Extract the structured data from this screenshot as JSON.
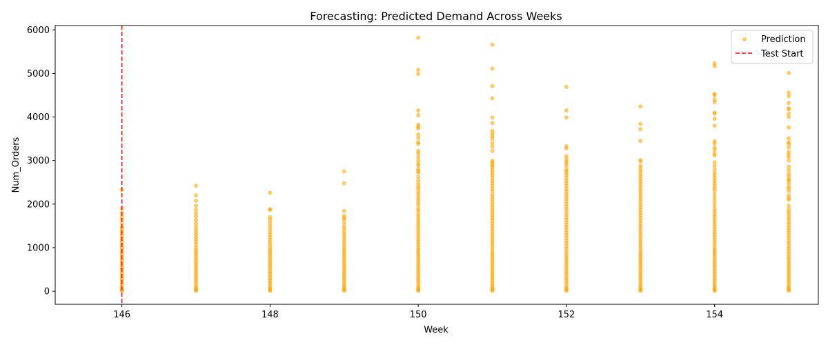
{
  "colors": {
    "prediction": "#ffa500",
    "test_start": "#ff0000",
    "axis": "#000000",
    "legend_border": "#cccccc"
  },
  "chart_data": {
    "type": "scatter",
    "title": "Forecasting: Predicted Demand Across Weeks",
    "xlabel": "Week",
    "ylabel": "Num_Orders",
    "xlim": [
      145.1,
      155.4
    ],
    "ylim": [
      -300,
      6100
    ],
    "xticks": [
      146,
      148,
      150,
      152,
      154
    ],
    "yticks": [
      0,
      1000,
      2000,
      3000,
      4000,
      5000,
      6000
    ],
    "grid": false,
    "legend_position": "top-right",
    "series": [
      {
        "name": "Prediction",
        "kind": "scatter",
        "points_by_week": [
          {
            "week": 146,
            "y": [
              2330,
              1900,
              1800,
              1720,
              1650,
              1560,
              1480,
              1440,
              1380,
              1330,
              1280,
              1220,
              1160,
              1100,
              1050,
              1000,
              950,
              900,
              850,
              800,
              750,
              700,
              650,
              600,
              550,
              500,
              450,
              400,
              350,
              300,
              250,
              200,
              150,
              100,
              60,
              30,
              10
            ]
          },
          {
            "week": 147,
            "y": [
              2420,
              2200,
              2080,
              1960,
              1870,
              1790,
              1710,
              1630,
              1560,
              1490,
              1420,
              1360,
              1300,
              1240,
              1180,
              1120,
              1060,
              1000,
              950,
              900,
              850,
              800,
              750,
              700,
              650,
              600,
              550,
              500,
              450,
              400,
              350,
              300,
              250,
              200,
              150,
              100,
              60,
              30,
              10
            ]
          },
          {
            "week": 148,
            "y": [
              2260,
              1880,
              1870,
              1700,
              1640,
              1570,
              1500,
              1430,
              1360,
              1300,
              1240,
              1180,
              1120,
              1060,
              1000,
              950,
              900,
              850,
              800,
              750,
              700,
              650,
              600,
              550,
              500,
              450,
              400,
              350,
              300,
              250,
              200,
              150,
              100,
              60,
              30,
              10
            ]
          },
          {
            "week": 149,
            "y": [
              2750,
              2480,
              1840,
              1730,
              1680,
              1640,
              1560,
              1480,
              1420,
              1360,
              1300,
              1240,
              1180,
              1120,
              1060,
              1000,
              950,
              900,
              850,
              800,
              750,
              700,
              650,
              600,
              550,
              500,
              450,
              400,
              350,
              300,
              250,
              200,
              150,
              100,
              60,
              30,
              10
            ]
          },
          {
            "week": 150,
            "y": [
              5820,
              5080,
              4990,
              4150,
              4040,
              3820,
              3780,
              3740,
              3600,
              3520,
              3420,
              3380,
              3220,
              3160,
              3080,
              3000,
              2930,
              2880,
              2800,
              2760,
              2720,
              2620,
              2540,
              2460,
              2400,
              2350,
              2280,
              2220,
              2160,
              2100,
              2040,
              1980,
              1900,
              1850,
              1780,
              1720,
              1660,
              1600,
              1540,
              1480,
              1420,
              1360,
              1300,
              1240,
              1180,
              1120,
              1060,
              1000,
              950,
              900,
              850,
              800,
              750,
              700,
              650,
              600,
              550,
              500,
              450,
              400,
              350,
              300,
              250,
              200,
              150,
              100,
              60,
              30,
              10
            ]
          },
          {
            "week": 151,
            "y": [
              5660,
              5110,
              4710,
              4430,
              3990,
              3860,
              3680,
              3620,
              3560,
              3500,
              3400,
              3320,
              3220,
              3000,
              2960,
              2920,
              2880,
              2840,
              2780,
              2720,
              2660,
              2600,
              2540,
              2480,
              2420,
              2360,
              2300,
              2220,
              2160,
              2100,
              2040,
              1980,
              1920,
              1860,
              1800,
              1740,
              1680,
              1620,
              1560,
              1500,
              1440,
              1380,
              1320,
              1260,
              1200,
              1140,
              1080,
              1020,
              960,
              900,
              850,
              800,
              750,
              700,
              650,
              600,
              550,
              500,
              450,
              400,
              350,
              300,
              250,
              200,
              150,
              100,
              60,
              30,
              10
            ]
          },
          {
            "week": 152,
            "y": [
              4690,
              4150,
              3990,
              3330,
              3280,
              3100,
              3040,
              2980,
              2940,
              2880,
              2800,
              2760,
              2720,
              2660,
              2600,
              2540,
              2480,
              2420,
              2360,
              2300,
              2240,
              2180,
              2120,
              2060,
              2000,
              1940,
              1880,
              1820,
              1760,
              1700,
              1640,
              1580,
              1520,
              1460,
              1400,
              1340,
              1280,
              1220,
              1160,
              1100,
              1040,
              980,
              920,
              860,
              800,
              750,
              700,
              650,
              600,
              550,
              500,
              450,
              400,
              350,
              300,
              250,
              200,
              150,
              100,
              60,
              30,
              10
            ]
          },
          {
            "week": 153,
            "y": [
              4240,
              3840,
              3720,
              3450,
              3010,
              2980,
              2880,
              2820,
              2760,
              2700,
              2640,
              2580,
              2520,
              2460,
              2400,
              2340,
              2280,
              2220,
              2160,
              2100,
              2040,
              1980,
              1920,
              1860,
              1800,
              1740,
              1680,
              1620,
              1560,
              1500,
              1440,
              1380,
              1320,
              1260,
              1200,
              1140,
              1080,
              1020,
              960,
              900,
              850,
              800,
              750,
              700,
              650,
              600,
              550,
              500,
              450,
              400,
              350,
              300,
              250,
              200,
              150,
              100,
              60,
              30,
              10
            ]
          },
          {
            "week": 154,
            "y": [
              5230,
              5170,
              4530,
              4500,
              4400,
              4340,
              4100,
              4080,
              3960,
              3800,
              3440,
              3400,
              3300,
              3240,
              3160,
              3120,
              2960,
              2880,
              2800,
              2720,
              2660,
              2600,
              2540,
              2480,
              2420,
              2360,
              2300,
              2220,
              2140,
              2060,
              1980,
              1900,
              1840,
              1780,
              1720,
              1660,
              1600,
              1540,
              1480,
              1420,
              1360,
              1300,
              1240,
              1180,
              1120,
              1060,
              1000,
              950,
              900,
              850,
              800,
              750,
              700,
              650,
              600,
              550,
              500,
              450,
              400,
              350,
              300,
              250,
              200,
              150,
              100,
              60,
              30,
              10
            ]
          },
          {
            "week": 155,
            "y": [
              5010,
              4560,
              4480,
              4320,
              4200,
              4180,
              4080,
              4000,
              3760,
              3510,
              3420,
              3380,
              3300,
              3200,
              3140,
              3080,
              3000,
              2860,
              2780,
              2700,
              2640,
              2580,
              2540,
              2480,
              2400,
              2360,
              2300,
              2200,
              2140,
              2100,
              1960,
              1880,
              1820,
              1760,
              1700,
              1640,
              1580,
              1520,
              1460,
              1400,
              1340,
              1280,
              1220,
              1160,
              1100,
              1040,
              980,
              920,
              860,
              800,
              750,
              700,
              650,
              600,
              550,
              500,
              450,
              400,
              350,
              300,
              250,
              200,
              150,
              100,
              60,
              30,
              10
            ]
          }
        ]
      },
      {
        "name": "Test Start",
        "kind": "vline",
        "x": 146
      }
    ]
  }
}
